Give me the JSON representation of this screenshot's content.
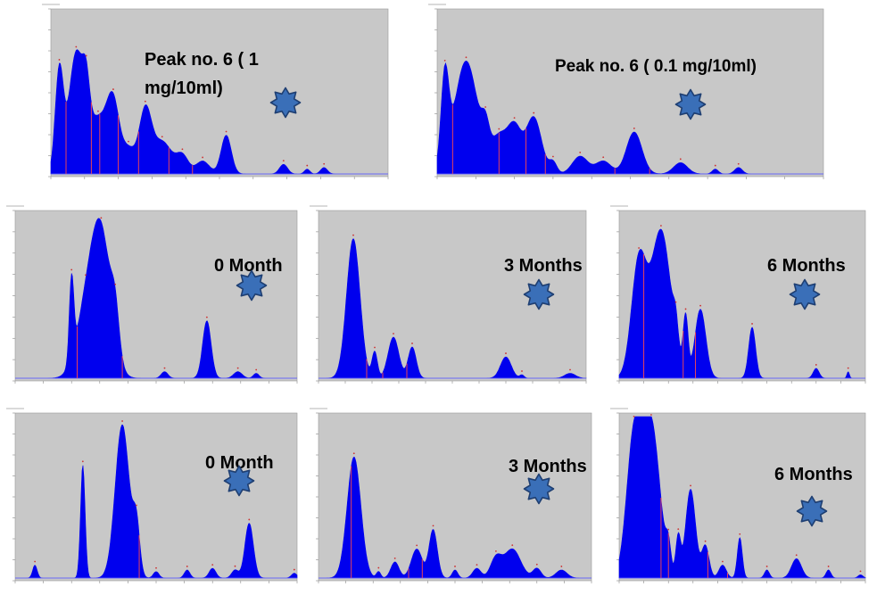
{
  "colors": {
    "plot_bg": "#c8c8c8",
    "fill": "#0000ee",
    "baseline": "#6a6aff",
    "marker": "#ff4a4a",
    "star_fill": "#3a6fb8",
    "star_stroke": "#1f3f72"
  },
  "labels": {
    "top_left": "Peak no. 6  ( 1 mg/10ml)",
    "top_right": "Peak no. 6  ( 0.1 mg/10ml)",
    "mid_left": "0 Month",
    "mid_center": "3 Months",
    "mid_right": "6 Months",
    "bot_left": "0 Month",
    "bot_center": "3 Months",
    "bot_right": "6 Months"
  },
  "chart_data": [
    {
      "type": "area",
      "label": "Peak no. 6  ( 1 mg/10ml)",
      "icon": "star-icon",
      "xlim": [
        0,
        1
      ],
      "ylim": [
        0,
        1
      ],
      "peaks": [
        [
          0.025,
          0.63,
          0.012
        ],
        [
          0.075,
          0.73,
          0.022
        ],
        [
          0.105,
          0.25,
          0.01
        ],
        [
          0.14,
          0.34,
          0.03
        ],
        [
          0.185,
          0.38,
          0.018
        ],
        [
          0.23,
          0.15,
          0.02
        ],
        [
          0.28,
          0.38,
          0.018
        ],
        [
          0.33,
          0.2,
          0.028
        ],
        [
          0.39,
          0.11,
          0.018
        ],
        [
          0.45,
          0.08,
          0.02
        ],
        [
          0.52,
          0.24,
          0.015
        ],
        [
          0.69,
          0.06,
          0.012
        ],
        [
          0.76,
          0.03,
          0.008
        ],
        [
          0.81,
          0.04,
          0.01
        ]
      ],
      "markers": [
        0.045,
        0.12,
        0.145,
        0.2,
        0.26,
        0.35,
        0.42
      ]
    },
    {
      "type": "area",
      "label": "Peak no. 6  ( 0.1 mg/10ml)",
      "icon": "star-icon",
      "xlim": [
        0,
        1
      ],
      "ylim": [
        0,
        1
      ],
      "peaks": [
        [
          0.02,
          0.55,
          0.01
        ],
        [
          0.075,
          0.7,
          0.03
        ],
        [
          0.125,
          0.17,
          0.01
        ],
        [
          0.16,
          0.22,
          0.02
        ],
        [
          0.2,
          0.28,
          0.018
        ],
        [
          0.25,
          0.35,
          0.02
        ],
        [
          0.3,
          0.07,
          0.01
        ],
        [
          0.37,
          0.11,
          0.02
        ],
        [
          0.43,
          0.08,
          0.02
        ],
        [
          0.51,
          0.26,
          0.02
        ],
        [
          0.63,
          0.07,
          0.018
        ],
        [
          0.72,
          0.03,
          0.008
        ],
        [
          0.78,
          0.04,
          0.01
        ]
      ],
      "markers": [
        0.04,
        0.16,
        0.23,
        0.28,
        0.46,
        0.55
      ]
    },
    {
      "type": "area",
      "label": "0 Month",
      "icon": "star-icon",
      "xlim": [
        0,
        1
      ],
      "ylim": [
        0,
        1
      ],
      "peaks": [
        [
          0.2,
          0.5,
          0.008
        ],
        [
          0.25,
          0.36,
          0.035
        ],
        [
          0.305,
          0.85,
          0.035
        ],
        [
          0.355,
          0.24,
          0.014
        ],
        [
          0.53,
          0.04,
          0.012
        ],
        [
          0.68,
          0.35,
          0.015
        ],
        [
          0.79,
          0.04,
          0.015
        ],
        [
          0.855,
          0.03,
          0.01
        ]
      ],
      "markers": [
        0.22,
        0.38
      ]
    },
    {
      "type": "area",
      "label": "3 Months",
      "icon": "star-icon",
      "xlim": [
        0,
        1
      ],
      "ylim": [
        0,
        1
      ],
      "peaks": [
        [
          0.13,
          0.85,
          0.025
        ],
        [
          0.21,
          0.16,
          0.01
        ],
        [
          0.28,
          0.25,
          0.02
        ],
        [
          0.35,
          0.19,
          0.015
        ],
        [
          0.7,
          0.13,
          0.02
        ],
        [
          0.76,
          0.02,
          0.008
        ],
        [
          0.94,
          0.03,
          0.02
        ]
      ],
      "markers": [
        0.18,
        0.24,
        0.33
      ]
    },
    {
      "type": "area",
      "label": "6 Months",
      "icon": "star-icon",
      "xlim": [
        0,
        1
      ],
      "ylim": [
        0,
        1
      ],
      "peaks": [
        [
          0.08,
          0.7,
          0.03
        ],
        [
          0.17,
          0.9,
          0.04
        ],
        [
          0.23,
          0.15,
          0.01
        ],
        [
          0.27,
          0.35,
          0.01
        ],
        [
          0.33,
          0.42,
          0.022
        ],
        [
          0.54,
          0.31,
          0.014
        ],
        [
          0.8,
          0.06,
          0.012
        ],
        [
          0.93,
          0.04,
          0.005
        ]
      ],
      "markers": [
        0.1,
        0.26,
        0.31,
        0.41
      ]
    },
    {
      "type": "area",
      "label": "0 Month",
      "icon": "star-icon",
      "xlim": [
        0,
        1
      ],
      "ylim": [
        0,
        1
      ],
      "peaks": [
        [
          0.07,
          0.08,
          0.008
        ],
        [
          0.24,
          0.7,
          0.008
        ],
        [
          0.38,
          0.95,
          0.025
        ],
        [
          0.43,
          0.3,
          0.012
        ],
        [
          0.5,
          0.04,
          0.01
        ],
        [
          0.61,
          0.05,
          0.01
        ],
        [
          0.7,
          0.06,
          0.012
        ],
        [
          0.78,
          0.05,
          0.012
        ],
        [
          0.83,
          0.34,
          0.015
        ],
        [
          0.99,
          0.03,
          0.01
        ]
      ],
      "markers": [
        0.27,
        0.44
      ]
    },
    {
      "type": "area",
      "label": "3 Months",
      "icon": "star-icon",
      "xlim": [
        0,
        1
      ],
      "ylim": [
        0,
        1
      ],
      "peaks": [
        [
          0.13,
          0.75,
          0.025
        ],
        [
          0.22,
          0.04,
          0.008
        ],
        [
          0.28,
          0.1,
          0.015
        ],
        [
          0.36,
          0.18,
          0.02
        ],
        [
          0.42,
          0.3,
          0.015
        ],
        [
          0.5,
          0.05,
          0.01
        ],
        [
          0.58,
          0.06,
          0.015
        ],
        [
          0.65,
          0.12,
          0.02
        ],
        [
          0.71,
          0.18,
          0.03
        ],
        [
          0.8,
          0.06,
          0.015
        ],
        [
          0.89,
          0.05,
          0.02
        ]
      ],
      "markers": [
        0.12,
        0.33,
        0.38
      ]
    },
    {
      "type": "area",
      "label": "6 Months",
      "icon": "star-icon",
      "xlim": [
        0,
        1
      ],
      "ylim": [
        0,
        1
      ],
      "peaks": [
        [
          0.06,
          0.85,
          0.03
        ],
        [
          0.13,
          0.95,
          0.035
        ],
        [
          0.2,
          0.15,
          0.01
        ],
        [
          0.24,
          0.25,
          0.01
        ],
        [
          0.29,
          0.55,
          0.02
        ],
        [
          0.35,
          0.2,
          0.015
        ],
        [
          0.42,
          0.08,
          0.015
        ],
        [
          0.49,
          0.25,
          0.01
        ],
        [
          0.6,
          0.05,
          0.01
        ],
        [
          0.72,
          0.12,
          0.02
        ],
        [
          0.85,
          0.05,
          0.01
        ],
        [
          0.98,
          0.02,
          0.01
        ]
      ],
      "markers": [
        0.17,
        0.2,
        0.36,
        0.44
      ]
    }
  ]
}
